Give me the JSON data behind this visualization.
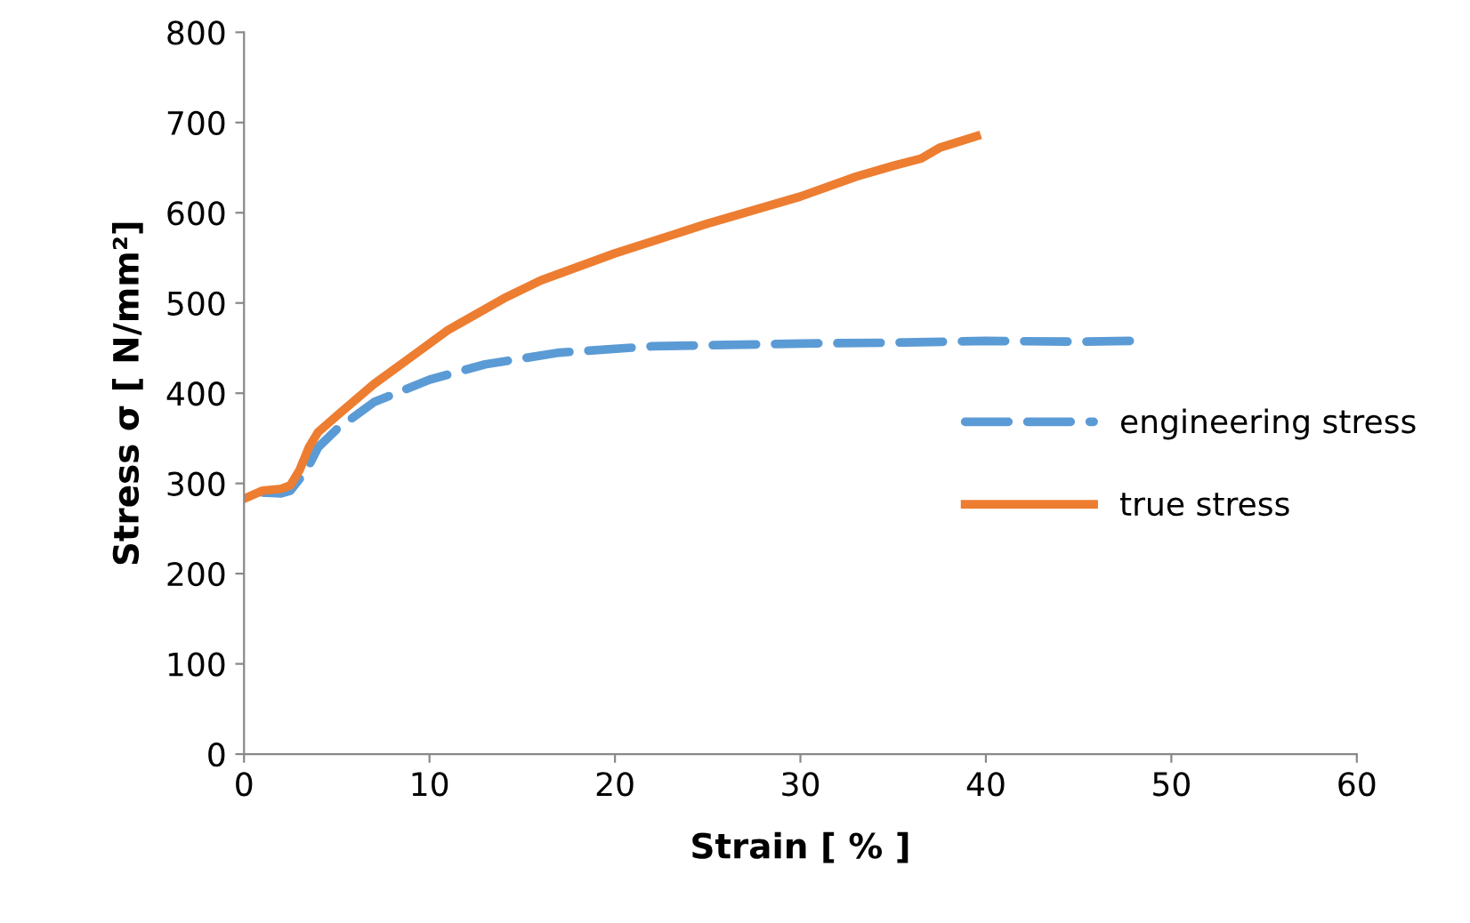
{
  "chart_data": {
    "type": "line",
    "xlabel": "Strain [ % ]",
    "ylabel": "Stress σ [ N/mm²]",
    "xlim": [
      0,
      60
    ],
    "xticks": [
      0,
      10,
      20,
      30,
      40,
      50,
      60
    ],
    "ylim": [
      0,
      800
    ],
    "yticks": [
      0,
      100,
      200,
      300,
      400,
      500,
      600,
      700,
      800
    ],
    "grid": false,
    "legend": "right",
    "series": [
      {
        "name": "engineering stress",
        "color": "#5b9bd5",
        "line_style": "dashed",
        "x": [
          1,
          2,
          2.5,
          3,
          3.5,
          4,
          5,
          7,
          10,
          13,
          17,
          22,
          30,
          35,
          40,
          45,
          48
        ],
        "values": [
          290,
          289,
          292,
          305,
          320,
          340,
          360,
          390,
          415,
          432,
          445,
          452,
          455,
          456,
          458,
          457,
          458
        ]
      },
      {
        "name": "true stress",
        "color": "#ed7d31",
        "line_style": "solid",
        "x": [
          0,
          1,
          2,
          2.5,
          3,
          3.5,
          4,
          5,
          7,
          9,
          11,
          14,
          16,
          20,
          25,
          30,
          33,
          35,
          36.5,
          37.5,
          39.5
        ],
        "values": [
          283,
          292,
          294,
          298,
          315,
          340,
          357,
          375,
          410,
          440,
          470,
          505,
          525,
          555,
          588,
          618,
          640,
          652,
          660,
          672,
          685
        ]
      }
    ]
  }
}
